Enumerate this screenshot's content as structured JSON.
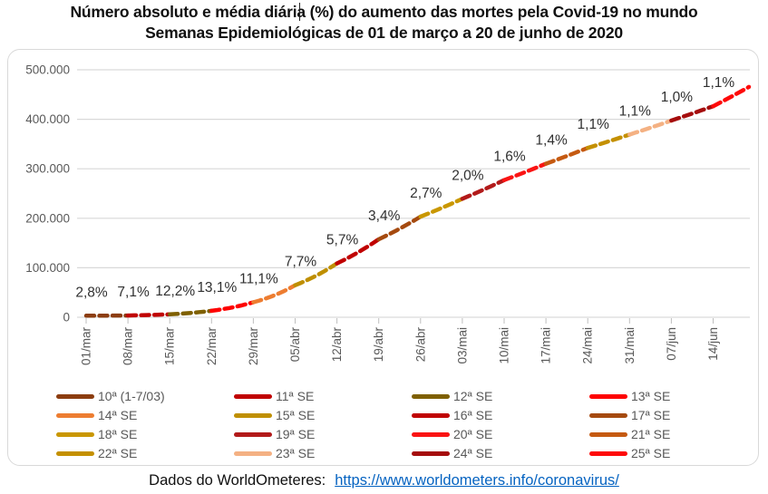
{
  "title": {
    "line1": "Número absoluto e média diária (%) do aumento das mortes pela Covid-19 no mundo",
    "line2": "Semanas Epidemiológicas de 01 de março a 20 de junho de 2020"
  },
  "chart_data": {
    "type": "line",
    "title": "Número absoluto e média diária (%) do aumento das mortes pela Covid-19 no mundo",
    "subtitle": "Semanas Epidemiológicas de 01 de março a 20 de junho de 2020",
    "xlabel": "",
    "ylabel": "",
    "ylim": [
      0,
      500000
    ],
    "grid": true,
    "legend_position": "bottom",
    "legend_columns": 4,
    "y_tick_labels": [
      "0",
      "100.000",
      "200.000",
      "300.000",
      "400.000",
      "500.000"
    ],
    "x_tick_labels": [
      "01/mar",
      "08/mar",
      "15/mar",
      "22/mar",
      "29/mar",
      "05/abr",
      "12/abr",
      "19/abr",
      "26/abr",
      "03/mai",
      "10/mai",
      "17/mai",
      "24/mai",
      "31/mai",
      "07/jun",
      "14/jun"
    ],
    "cumulative_deaths_at_week_boundaries": [
      3050,
      3560,
      5800,
      13050,
      30300,
      64700,
      108800,
      157500,
      203300,
      239400,
      277100,
      310300,
      342100,
      369100,
      397400,
      426400,
      465300
    ],
    "weeks": [
      {
        "label": "10ª (1-7/03)",
        "percent": "2,8%",
        "color": "#8C3D10"
      },
      {
        "label": "11ª SE",
        "percent": "7,1%",
        "color": "#C00000"
      },
      {
        "label": "12ª SE",
        "percent": "12,2%",
        "color": "#7F6000"
      },
      {
        "label": "13ª SE",
        "percent": "13,1%",
        "color": "#FE0000"
      },
      {
        "label": "14ª SE",
        "percent": "11,1%",
        "color": "#ED7D31"
      },
      {
        "label": "15ª SE",
        "percent": "7,7%",
        "color": "#BF8F00"
      },
      {
        "label": "16ª SE",
        "percent": "5,7%",
        "color": "#C00000"
      },
      {
        "label": "17ª SE",
        "percent": "3,4%",
        "color": "#A54A0F"
      },
      {
        "label": "18ª SE",
        "percent": "2,7%",
        "color": "#C99700"
      },
      {
        "label": "19ª SE",
        "percent": "2,0%",
        "color": "#B21A1A"
      },
      {
        "label": "20ª SE",
        "percent": "1,6%",
        "color": "#FA1414"
      },
      {
        "label": "21ª SE",
        "percent": "1,4%",
        "color": "#C55A11"
      },
      {
        "label": "22ª SE",
        "percent": "1,1%",
        "color": "#C49000"
      },
      {
        "label": "23ª SE",
        "percent": "1,1%",
        "color": "#F4B183"
      },
      {
        "label": "24ª SE",
        "percent": "1,0%",
        "color": "#A50D0D"
      },
      {
        "label": "25ª SE",
        "percent": "1,1%",
        "color": "#FE0A0A"
      }
    ],
    "colors": {
      "gridline": "#D9D9D9",
      "axis_text": "#595959",
      "percent_label_text": "#303030"
    }
  },
  "footer": {
    "source_label": "Dados do WorldOmeteres:",
    "link_text": "https://www.worldometers.info/coronavirus/",
    "link_color": "#0563C1"
  }
}
